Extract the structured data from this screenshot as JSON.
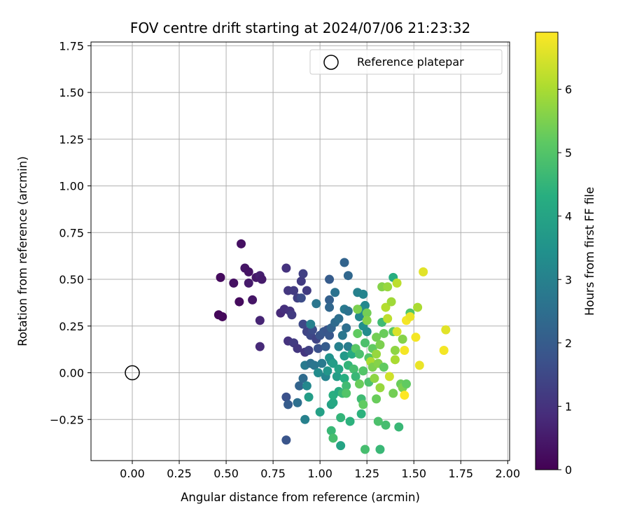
{
  "chart_data": {
    "type": "scatter",
    "title": "FOV centre drift starting at 2024/07/06 21:23:32",
    "xlabel": "Angular distance from reference (arcmin)",
    "ylabel": "Rotation from reference (arcmin)",
    "xlim": [
      -0.22,
      2.01
    ],
    "ylim": [
      -0.47,
      1.77
    ],
    "xticks": [
      0.0,
      0.25,
      0.5,
      0.75,
      1.0,
      1.25,
      1.5,
      1.75,
      2.0
    ],
    "xtick_labels": [
      "0.00",
      "0.25",
      "0.50",
      "0.75",
      "1.00",
      "1.25",
      "1.50",
      "1.75",
      "2.00"
    ],
    "yticks": [
      -0.25,
      0.0,
      0.25,
      0.5,
      0.75,
      1.0,
      1.25,
      1.5,
      1.75
    ],
    "ytick_labels": [
      "−0.25",
      "0.00",
      "0.25",
      "0.50",
      "0.75",
      "1.00",
      "1.25",
      "1.50",
      "1.75"
    ],
    "grid": true,
    "legend": {
      "label": "Reference platepar",
      "placement": "top-right",
      "marker": "open-circle"
    },
    "reference_point": {
      "x": 0.0,
      "y": 0.0
    },
    "colorbar": {
      "label": "Hours from first FF file",
      "colormap": "viridis",
      "range": [
        0,
        6.9
      ],
      "ticks": [
        0,
        1,
        2,
        3,
        4,
        5,
        6
      ],
      "tick_labels": [
        "0",
        "1",
        "2",
        "3",
        "4",
        "5",
        "6"
      ]
    },
    "points": [
      {
        "x": 0.46,
        "y": 0.31,
        "t": 0.1
      },
      {
        "x": 0.48,
        "y": 0.3,
        "t": 0.15
      },
      {
        "x": 0.47,
        "y": 0.51,
        "t": 0.2
      },
      {
        "x": 0.54,
        "y": 0.48,
        "t": 0.3
      },
      {
        "x": 0.57,
        "y": 0.38,
        "t": 0.2
      },
      {
        "x": 0.58,
        "y": 0.69,
        "t": 0.3
      },
      {
        "x": 0.6,
        "y": 0.56,
        "t": 0.4
      },
      {
        "x": 0.62,
        "y": 0.54,
        "t": 0.35
      },
      {
        "x": 0.62,
        "y": 0.48,
        "t": 0.5
      },
      {
        "x": 0.64,
        "y": 0.39,
        "t": 0.4
      },
      {
        "x": 0.66,
        "y": 0.51,
        "t": 0.45
      },
      {
        "x": 0.68,
        "y": 0.52,
        "t": 0.6
      },
      {
        "x": 0.69,
        "y": 0.5,
        "t": 0.5
      },
      {
        "x": 0.68,
        "y": 0.28,
        "t": 0.7
      },
      {
        "x": 0.68,
        "y": 0.14,
        "t": 0.8
      },
      {
        "x": 0.79,
        "y": 0.32,
        "t": 0.8
      },
      {
        "x": 0.81,
        "y": 0.34,
        "t": 0.9
      },
      {
        "x": 0.82,
        "y": 0.56,
        "t": 1.0
      },
      {
        "x": 0.83,
        "y": 0.44,
        "t": 1.1
      },
      {
        "x": 0.84,
        "y": 0.33,
        "t": 1.0
      },
      {
        "x": 0.85,
        "y": 0.31,
        "t": 1.2
      },
      {
        "x": 0.86,
        "y": 0.44,
        "t": 1.2
      },
      {
        "x": 0.88,
        "y": 0.4,
        "t": 1.3
      },
      {
        "x": 0.9,
        "y": 0.49,
        "t": 1.2
      },
      {
        "x": 0.91,
        "y": 0.53,
        "t": 1.3
      },
      {
        "x": 0.9,
        "y": 0.4,
        "t": 1.6
      },
      {
        "x": 0.91,
        "y": 0.26,
        "t": 1.5
      },
      {
        "x": 0.93,
        "y": 0.44,
        "t": 1.2
      },
      {
        "x": 0.93,
        "y": 0.22,
        "t": 1.4
      },
      {
        "x": 0.83,
        "y": 0.17,
        "t": 1.0
      },
      {
        "x": 0.86,
        "y": 0.16,
        "t": 1.2
      },
      {
        "x": 0.88,
        "y": 0.13,
        "t": 1.1
      },
      {
        "x": 0.92,
        "y": 0.11,
        "t": 1.1
      },
      {
        "x": 0.94,
        "y": 0.12,
        "t": 1.3
      },
      {
        "x": 0.95,
        "y": 0.2,
        "t": 1.5
      },
      {
        "x": 0.96,
        "y": 0.23,
        "t": 1.6
      },
      {
        "x": 0.98,
        "y": 0.18,
        "t": 1.4
      },
      {
        "x": 0.99,
        "y": 0.13,
        "t": 1.7
      },
      {
        "x": 1.0,
        "y": 0.2,
        "t": 1.8
      },
      {
        "x": 1.02,
        "y": 0.22,
        "t": 1.9
      },
      {
        "x": 1.03,
        "y": 0.14,
        "t": 2.0
      },
      {
        "x": 1.04,
        "y": 0.23,
        "t": 1.8
      },
      {
        "x": 1.05,
        "y": 0.2,
        "t": 1.9
      },
      {
        "x": 1.05,
        "y": 0.5,
        "t": 2.0
      },
      {
        "x": 1.05,
        "y": 0.39,
        "t": 2.1
      },
      {
        "x": 1.05,
        "y": 0.35,
        "t": 2.3
      },
      {
        "x": 1.06,
        "y": 0.24,
        "t": 2.2
      },
      {
        "x": 1.08,
        "y": 0.27,
        "t": 2.4
      },
      {
        "x": 1.1,
        "y": 0.29,
        "t": 2.5
      },
      {
        "x": 1.08,
        "y": 0.43,
        "t": 2.6
      },
      {
        "x": 1.13,
        "y": 0.59,
        "t": 2.2
      },
      {
        "x": 1.15,
        "y": 0.52,
        "t": 2.3
      },
      {
        "x": 1.13,
        "y": 0.34,
        "t": 2.8
      },
      {
        "x": 1.15,
        "y": 0.33,
        "t": 2.6
      },
      {
        "x": 1.14,
        "y": 0.24,
        "t": 2.5
      },
      {
        "x": 1.12,
        "y": 0.2,
        "t": 2.7
      },
      {
        "x": 1.1,
        "y": 0.14,
        "t": 3.0
      },
      {
        "x": 1.15,
        "y": 0.14,
        "t": 2.9
      },
      {
        "x": 1.2,
        "y": 0.43,
        "t": 3.0
      },
      {
        "x": 1.23,
        "y": 0.42,
        "t": 3.1
      },
      {
        "x": 1.24,
        "y": 0.36,
        "t": 3.2
      },
      {
        "x": 1.22,
        "y": 0.34,
        "t": 3.3
      },
      {
        "x": 1.21,
        "y": 0.3,
        "t": 3.2
      },
      {
        "x": 1.23,
        "y": 0.25,
        "t": 3.4
      },
      {
        "x": 1.25,
        "y": 0.22,
        "t": 3.3
      },
      {
        "x": 0.82,
        "y": -0.13,
        "t": 1.7
      },
      {
        "x": 0.83,
        "y": -0.17,
        "t": 2.0
      },
      {
        "x": 0.82,
        "y": -0.36,
        "t": 1.8
      },
      {
        "x": 0.88,
        "y": -0.16,
        "t": 2.5
      },
      {
        "x": 0.89,
        "y": -0.07,
        "t": 2.2
      },
      {
        "x": 0.91,
        "y": -0.03,
        "t": 2.4
      },
      {
        "x": 0.92,
        "y": -0.25,
        "t": 3.0
      },
      {
        "x": 0.93,
        "y": -0.07,
        "t": 3.2
      },
      {
        "x": 0.94,
        "y": -0.13,
        "t": 3.8
      },
      {
        "x": 0.92,
        "y": 0.04,
        "t": 2.8
      },
      {
        "x": 0.95,
        "y": 0.05,
        "t": 2.6
      },
      {
        "x": 0.97,
        "y": 0.04,
        "t": 2.7
      },
      {
        "x": 0.98,
        "y": 0.37,
        "t": 2.7
      },
      {
        "x": 0.95,
        "y": 0.26,
        "t": 3.0
      },
      {
        "x": 0.99,
        "y": 0.0,
        "t": 3.3
      },
      {
        "x": 1.0,
        "y": -0.21,
        "t": 3.9
      },
      {
        "x": 1.01,
        "y": 0.05,
        "t": 2.8
      },
      {
        "x": 1.03,
        "y": -0.02,
        "t": 3.1
      },
      {
        "x": 1.04,
        "y": 0.01,
        "t": 3.6
      },
      {
        "x": 1.05,
        "y": 0.08,
        "t": 3.5
      },
      {
        "x": 1.06,
        "y": 0.06,
        "t": 3.4
      },
      {
        "x": 1.07,
        "y": 0.05,
        "t": 3.8
      },
      {
        "x": 1.06,
        "y": -0.17,
        "t": 3.9
      },
      {
        "x": 1.07,
        "y": -0.16,
        "t": 4.1
      },
      {
        "x": 1.07,
        "y": -0.12,
        "t": 4.3
      },
      {
        "x": 1.06,
        "y": -0.31,
        "t": 4.6
      },
      {
        "x": 1.07,
        "y": -0.35,
        "t": 4.8
      },
      {
        "x": 1.09,
        "y": -0.02,
        "t": 3.8
      },
      {
        "x": 1.1,
        "y": 0.02,
        "t": 4.0
      },
      {
        "x": 1.1,
        "y": -0.1,
        "t": 4.2
      },
      {
        "x": 1.11,
        "y": -0.24,
        "t": 4.5
      },
      {
        "x": 1.11,
        "y": -0.39,
        "t": 4.0
      },
      {
        "x": 1.12,
        "y": -0.11,
        "t": 4.6
      },
      {
        "x": 1.13,
        "y": 0.09,
        "t": 3.7
      },
      {
        "x": 1.13,
        "y": -0.03,
        "t": 4.3
      },
      {
        "x": 1.14,
        "y": -0.07,
        "t": 4.7
      },
      {
        "x": 1.14,
        "y": -0.11,
        "t": 5.0
      },
      {
        "x": 1.15,
        "y": 0.04,
        "t": 4.5
      },
      {
        "x": 1.16,
        "y": -0.26,
        "t": 4.4
      },
      {
        "x": 1.17,
        "y": 0.1,
        "t": 4.2
      },
      {
        "x": 1.18,
        "y": 0.02,
        "t": 4.8
      },
      {
        "x": 1.19,
        "y": -0.02,
        "t": 4.6
      },
      {
        "x": 1.19,
        "y": 0.13,
        "t": 5.1
      },
      {
        "x": 1.2,
        "y": 0.21,
        "t": 5.2
      },
      {
        "x": 1.2,
        "y": 0.34,
        "t": 5.5
      },
      {
        "x": 1.21,
        "y": 0.1,
        "t": 4.9
      },
      {
        "x": 1.21,
        "y": -0.06,
        "t": 5.3
      },
      {
        "x": 1.22,
        "y": -0.14,
        "t": 4.7
      },
      {
        "x": 1.22,
        "y": -0.22,
        "t": 4.4
      },
      {
        "x": 1.23,
        "y": 0.01,
        "t": 5.0
      },
      {
        "x": 1.23,
        "y": -0.17,
        "t": 5.2
      },
      {
        "x": 1.24,
        "y": 0.16,
        "t": 4.9
      },
      {
        "x": 1.24,
        "y": -0.41,
        "t": 4.8
      },
      {
        "x": 1.25,
        "y": 0.32,
        "t": 5.4
      },
      {
        "x": 1.25,
        "y": 0.28,
        "t": 5.6
      },
      {
        "x": 1.26,
        "y": 0.08,
        "t": 5.0
      },
      {
        "x": 1.26,
        "y": -0.05,
        "t": 4.9
      },
      {
        "x": 1.27,
        "y": 0.06,
        "t": 6.0
      },
      {
        "x": 1.28,
        "y": 0.13,
        "t": 5.2
      },
      {
        "x": 1.28,
        "y": 0.03,
        "t": 5.5
      },
      {
        "x": 1.29,
        "y": -0.03,
        "t": 5.7
      },
      {
        "x": 1.3,
        "y": 0.19,
        "t": 5.4
      },
      {
        "x": 1.3,
        "y": 0.1,
        "t": 5.8
      },
      {
        "x": 1.3,
        "y": -0.14,
        "t": 5.3
      },
      {
        "x": 1.31,
        "y": -0.26,
        "t": 4.9
      },
      {
        "x": 1.31,
        "y": 0.05,
        "t": 5.6
      },
      {
        "x": 1.32,
        "y": 0.15,
        "t": 5.5
      },
      {
        "x": 1.32,
        "y": -0.08,
        "t": 5.8
      },
      {
        "x": 1.32,
        "y": -0.41,
        "t": 4.6
      },
      {
        "x": 1.33,
        "y": 0.27,
        "t": 4.7
      },
      {
        "x": 1.33,
        "y": 0.46,
        "t": 5.6
      },
      {
        "x": 1.34,
        "y": 0.03,
        "t": 5.2
      },
      {
        "x": 1.34,
        "y": 0.21,
        "t": 5.3
      },
      {
        "x": 1.35,
        "y": -0.28,
        "t": 4.8
      },
      {
        "x": 1.35,
        "y": 0.35,
        "t": 6.1
      },
      {
        "x": 1.36,
        "y": 0.46,
        "t": 5.8
      },
      {
        "x": 1.36,
        "y": 0.29,
        "t": 6.2
      },
      {
        "x": 1.37,
        "y": -0.02,
        "t": 6.4
      },
      {
        "x": 1.38,
        "y": 0.38,
        "t": 5.9
      },
      {
        "x": 1.39,
        "y": 0.51,
        "t": 4.3
      },
      {
        "x": 1.39,
        "y": 0.22,
        "t": 5.1
      },
      {
        "x": 1.39,
        "y": -0.11,
        "t": 5.4
      },
      {
        "x": 1.4,
        "y": 0.12,
        "t": 5.7
      },
      {
        "x": 1.4,
        "y": 0.07,
        "t": 6.0
      },
      {
        "x": 1.41,
        "y": 0.48,
        "t": 6.2
      },
      {
        "x": 1.41,
        "y": 0.22,
        "t": 6.5
      },
      {
        "x": 1.42,
        "y": -0.29,
        "t": 4.6
      },
      {
        "x": 1.43,
        "y": -0.06,
        "t": 5.3
      },
      {
        "x": 1.44,
        "y": 0.18,
        "t": 5.6
      },
      {
        "x": 1.44,
        "y": -0.08,
        "t": 5.5
      },
      {
        "x": 1.45,
        "y": 0.12,
        "t": 6.8
      },
      {
        "x": 1.45,
        "y": -0.12,
        "t": 6.9
      },
      {
        "x": 1.46,
        "y": 0.28,
        "t": 6.8
      },
      {
        "x": 1.46,
        "y": -0.06,
        "t": 5.2
      },
      {
        "x": 1.48,
        "y": 0.32,
        "t": 5.0
      },
      {
        "x": 1.48,
        "y": 0.3,
        "t": 6.7
      },
      {
        "x": 1.51,
        "y": 0.19,
        "t": 6.8
      },
      {
        "x": 1.52,
        "y": 0.35,
        "t": 6.0
      },
      {
        "x": 1.53,
        "y": 0.04,
        "t": 6.7
      },
      {
        "x": 1.55,
        "y": 0.54,
        "t": 6.6
      },
      {
        "x": 1.66,
        "y": 0.12,
        "t": 6.8
      },
      {
        "x": 1.67,
        "y": 0.23,
        "t": 6.6
      }
    ]
  }
}
